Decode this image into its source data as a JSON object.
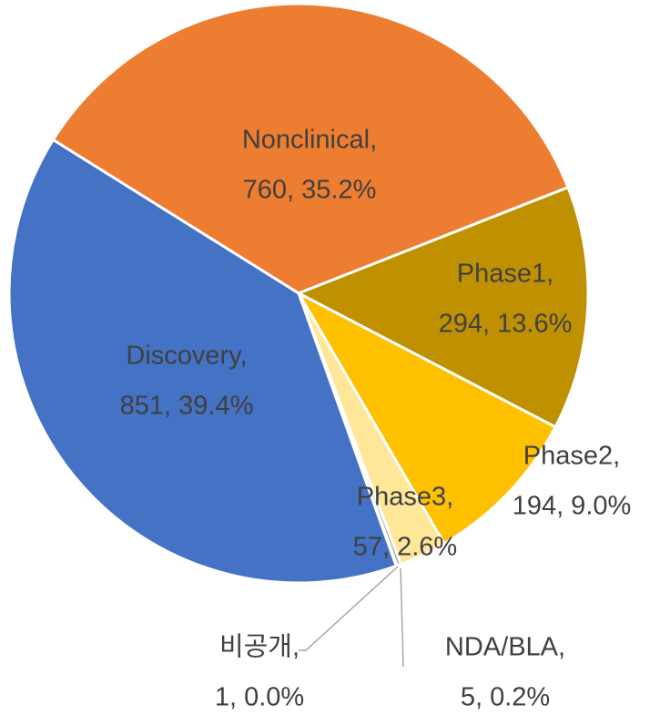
{
  "chart_data": {
    "type": "pie",
    "categories": [
      "Nonclinical,",
      "Phase1,",
      "Phase2,",
      "Phase3,",
      "NDA/BLA,",
      "비공개,",
      "Discovery,"
    ],
    "values": [
      760,
      294,
      194,
      57,
      5,
      1,
      851
    ],
    "value_labels": [
      "760, 35.2%",
      "294, 13.6%",
      "194, 9.0%",
      "57, 2.6%",
      "5, 0.2%",
      "1, 0.0%",
      "851, 39.4%"
    ],
    "colors": [
      "#ED7D31",
      "#BF9000",
      "#FFC000",
      "#FFE699",
      "#A5A5A5",
      "#7F7F7F",
      "#4472C4"
    ]
  }
}
